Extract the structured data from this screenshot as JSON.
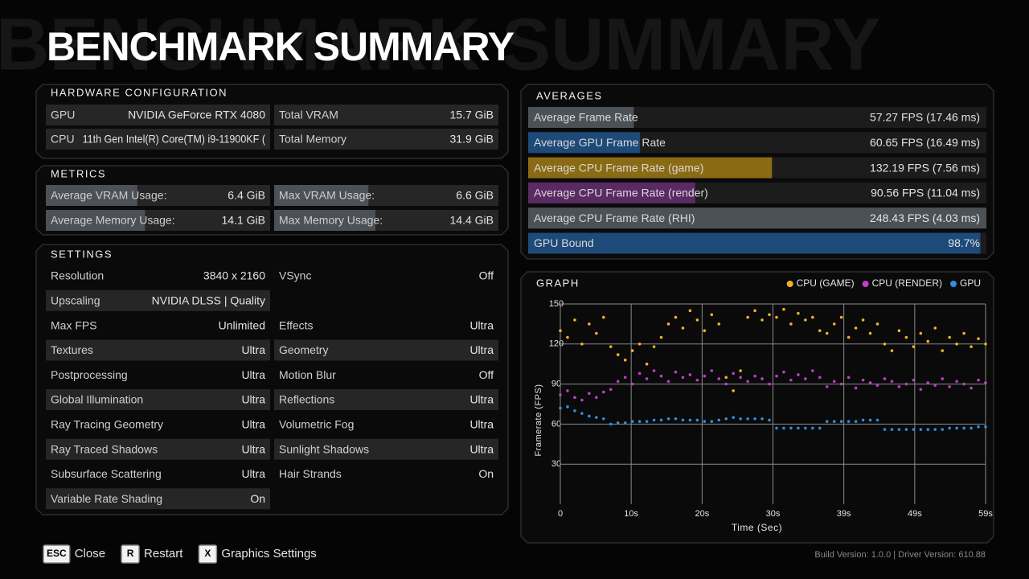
{
  "header": {
    "title": "BENCHMARK SUMMARY"
  },
  "hardware": {
    "title": "HARDWARE CONFIGURATION",
    "rows": [
      [
        {
          "label": "GPU",
          "value": "NVIDIA GeForce RTX 4080"
        },
        {
          "label": "Total VRAM",
          "value": "15.7 GiB"
        }
      ],
      [
        {
          "label": "CPU",
          "value": "11th Gen Intel(R) Core(TM) i9-11900KF ("
        },
        {
          "label": "Total Memory",
          "value": "31.9 GiB"
        }
      ]
    ]
  },
  "metrics": {
    "title": "METRICS",
    "rows": [
      [
        {
          "label": "Average VRAM Usage:",
          "value": "6.4 GiB"
        },
        {
          "label": "Max VRAM Usage:",
          "value": "6.6 GiB"
        }
      ],
      [
        {
          "label": "Average Memory Usage:",
          "value": "14.1 GiB"
        },
        {
          "label": "Max Memory Usage:",
          "value": "14.4 GiB"
        }
      ]
    ]
  },
  "settings": {
    "title": "SETTINGS",
    "rows": [
      [
        {
          "label": "Resolution",
          "value": "3840 x 2160"
        },
        {
          "label": "VSync",
          "value": "Off"
        }
      ],
      [
        {
          "label": "Upscaling",
          "value": "NVIDIA DLSS | Quality"
        }
      ],
      [
        {
          "label": "Max FPS",
          "value": "Unlimited"
        },
        {
          "label": "Effects",
          "value": "Ultra"
        }
      ],
      [
        {
          "label": "Textures",
          "value": "Ultra"
        },
        {
          "label": "Geometry",
          "value": "Ultra"
        }
      ],
      [
        {
          "label": "Postprocessing",
          "value": "Ultra"
        },
        {
          "label": "Motion Blur",
          "value": "Off"
        }
      ],
      [
        {
          "label": "Global Illumination",
          "value": "Ultra"
        },
        {
          "label": "Reflections",
          "value": "Ultra"
        }
      ],
      [
        {
          "label": "Ray Tracing Geometry",
          "value": "Ultra"
        },
        {
          "label": "Volumetric Fog",
          "value": "Ultra"
        }
      ],
      [
        {
          "label": "Ray Traced Shadows",
          "value": "Ultra"
        },
        {
          "label": "Sunlight Shadows",
          "value": "Ultra"
        }
      ],
      [
        {
          "label": "Subsurface Scattering",
          "value": "Ultra"
        },
        {
          "label": "Hair Strands",
          "value": "On"
        }
      ],
      [
        {
          "label": "Variable Rate Shading",
          "value": "On"
        }
      ]
    ]
  },
  "averages": {
    "title": "AVERAGES",
    "rows": [
      {
        "label": "Average Frame Rate",
        "value": "57.27 FPS (17.46 ms)",
        "color": "#4b5157"
      },
      {
        "label": "Average GPU Frame Rate",
        "value": "60.65 FPS (16.49 ms)",
        "color": "#1d4a78"
      },
      {
        "label": "Average CPU Frame Rate (game)",
        "value": "132.19 FPS (7.56 ms)",
        "color": "#8a6a12"
      },
      {
        "label": "Average CPU Frame Rate (render)",
        "value": "90.56 FPS (11.04 ms)",
        "color": "#5a2a62"
      },
      {
        "label": "Average CPU Frame Rate (RHI)",
        "value": "248.43 FPS (4.03 ms)",
        "color": "#4b5157"
      },
      {
        "label": "GPU Bound",
        "value": "98.7%",
        "color": "#1d4a78"
      }
    ]
  },
  "chart_data": {
    "type": "scatter",
    "title": "GRAPH",
    "x_label": "Time (Sec)",
    "y_label": "Framerate (FPS)",
    "xlim": [
      0,
      59
    ],
    "ylim": [
      0,
      150
    ],
    "xticks": [
      0,
      {
        "value": 9.83,
        "label": "10s"
      },
      {
        "value": 19.67,
        "label": "20s"
      },
      {
        "value": 29.5,
        "label": "30s"
      },
      {
        "value": 39.33,
        "label": "39s"
      },
      {
        "value": 49.17,
        "label": "49s"
      },
      {
        "value": 59,
        "label": "59s"
      }
    ],
    "yticks": [
      30,
      60,
      90,
      120,
      150
    ],
    "grid": true,
    "x": [
      0,
      1,
      2,
      3,
      4,
      5,
      6,
      7,
      8,
      9,
      10,
      11,
      12,
      13,
      14,
      15,
      16,
      17,
      18,
      19,
      20,
      21,
      22,
      23,
      24,
      25,
      26,
      27,
      28,
      29,
      30,
      31,
      32,
      33,
      34,
      35,
      36,
      37,
      38,
      39,
      40,
      41,
      42,
      43,
      44,
      45,
      46,
      47,
      48,
      49,
      50,
      51,
      52,
      53,
      54,
      55,
      56,
      57,
      58,
      59
    ],
    "series": [
      {
        "name": "CPU (GAME)",
        "color": "#f2b323",
        "values": [
          130,
          125,
          138,
          120,
          135,
          128,
          140,
          118,
          112,
          108,
          115,
          120,
          105,
          118,
          125,
          135,
          140,
          132,
          145,
          138,
          130,
          142,
          135,
          95,
          85,
          100,
          140,
          145,
          138,
          142,
          140,
          146,
          135,
          143,
          138,
          140,
          130,
          128,
          135,
          140,
          125,
          132,
          138,
          128,
          135,
          120,
          115,
          130,
          125,
          118,
          128,
          122,
          132,
          115,
          125,
          120,
          128,
          118,
          124,
          120
        ]
      },
      {
        "name": "CPU (RENDER)",
        "color": "#c13cc8",
        "values": [
          82,
          85,
          80,
          78,
          83,
          80,
          84,
          86,
          92,
          95,
          90,
          98,
          94,
          100,
          96,
          92,
          99,
          95,
          97,
          93,
          96,
          100,
          94,
          90,
          98,
          95,
          92,
          96,
          94,
          90,
          96,
          99,
          93,
          97,
          94,
          100,
          95,
          88,
          92,
          90,
          95,
          87,
          93,
          91,
          89,
          94,
          92,
          88,
          90,
          93,
          86,
          91,
          89,
          94,
          88,
          92,
          90,
          87,
          93,
          91
        ]
      },
      {
        "name": "GPU",
        "color": "#2e8fe0",
        "values": [
          72,
          73,
          70,
          68,
          66,
          65,
          64,
          60,
          61,
          61,
          62,
          62,
          62,
          63,
          63,
          64,
          64,
          63,
          63,
          63,
          62,
          62,
          63,
          64,
          65,
          64,
          64,
          64,
          64,
          63,
          57,
          57,
          57,
          57,
          57,
          57,
          57,
          62,
          62,
          62,
          62,
          62,
          63,
          63,
          63,
          56,
          56,
          56,
          56,
          56,
          56,
          56,
          56,
          56,
          57,
          57,
          57,
          57,
          58,
          58
        ]
      }
    ]
  },
  "footer": {
    "buttons": [
      {
        "key": "ESC",
        "label": "Close"
      },
      {
        "key": "R",
        "label": "Restart"
      },
      {
        "key": "X",
        "label": "Graphics Settings"
      }
    ],
    "build": "Build Version: 1.0.0 | Driver Version: 610.88"
  }
}
